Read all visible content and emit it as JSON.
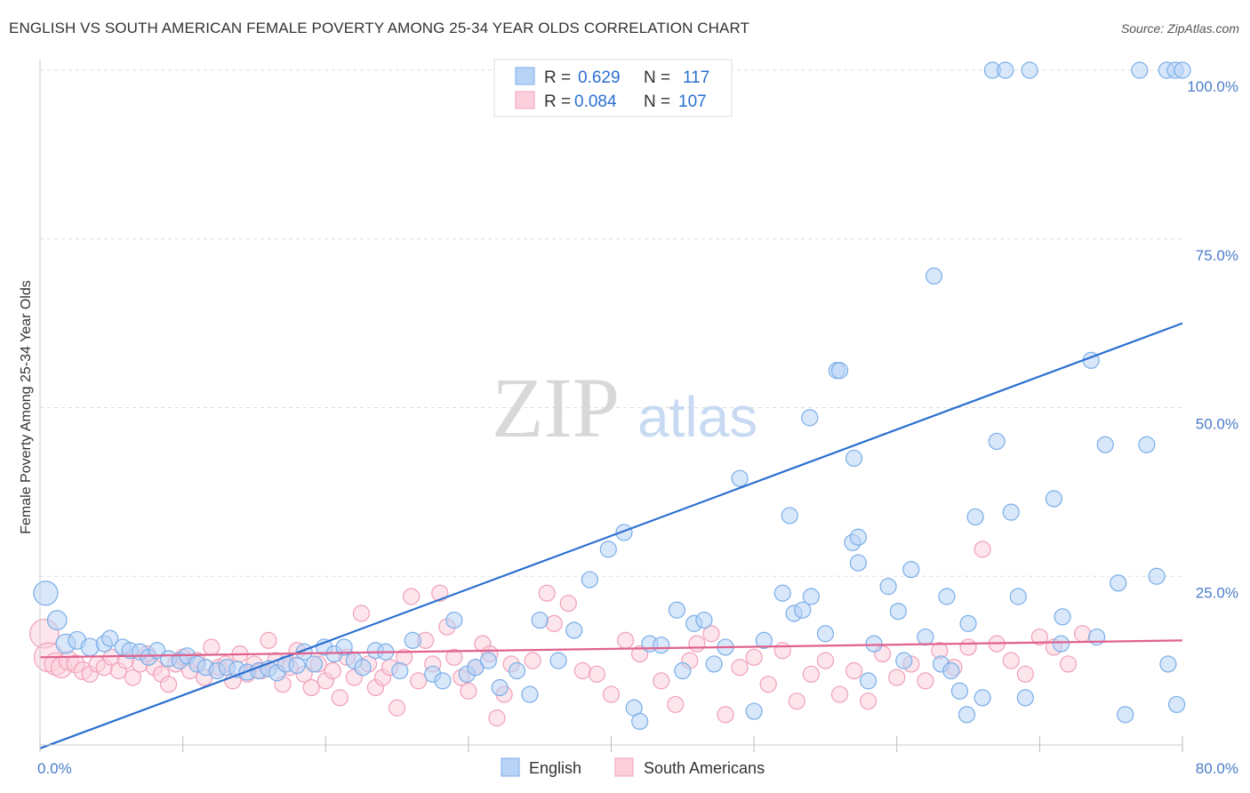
{
  "title": "ENGLISH VS SOUTH AMERICAN FEMALE POVERTY AMONG 25-34 YEAR OLDS CORRELATION CHART",
  "source": "Source: ZipAtlas.com",
  "watermark": {
    "zip": "ZIP",
    "atlas": "atlas"
  },
  "colors": {
    "english": "#7aaee8",
    "english_fill": "#b8d3f5",
    "english_line": "#2b6fd0",
    "south": "#f0a0b8",
    "south_fill": "#fbd0dc",
    "south_line": "#e0628e",
    "tick_text": "#4a7cc9",
    "grid": "#dddddd"
  },
  "legend": {
    "rows": [
      {
        "r_label": "R =",
        "r_value": "0.629",
        "n_label": "N =",
        "n_value": "117"
      },
      {
        "r_label": "R =",
        "r_value": "0.084",
        "n_label": "N =",
        "n_value": "107"
      }
    ]
  },
  "bottom_legend": [
    "English",
    "South Americans"
  ],
  "chart_data": {
    "type": "scatter",
    "title": "ENGLISH VS SOUTH AMERICAN FEMALE POVERTY AMONG 25-34 YEAR OLDS CORRELATION CHART",
    "xlabel": "",
    "ylabel": "Female Poverty Among 25-34 Year Olds",
    "xlim": [
      0,
      80
    ],
    "ylim": [
      0,
      100
    ],
    "x_tick_labels": [
      "0.0%",
      "80.0%"
    ],
    "y_tick_values": [
      25,
      50,
      75,
      100
    ],
    "y_tick_labels": [
      "25.0%",
      "50.0%",
      "75.0%",
      "100.0%"
    ],
    "grid": true,
    "legend_position": "top-center",
    "series": [
      {
        "name": "English",
        "r": 0.629,
        "n": 117,
        "trend": {
          "x": [
            0,
            80
          ],
          "y": [
            -0.5,
            62.5
          ]
        },
        "points": [
          [
            0.4,
            22.5,
            1.5
          ],
          [
            1.2,
            18.5,
            1.2
          ],
          [
            1.8,
            15.0,
            1.2
          ],
          [
            2.6,
            15.5,
            1.1
          ],
          [
            3.5,
            14.5,
            1.1
          ],
          [
            4.5,
            15.0,
            1.0
          ],
          [
            4.9,
            15.8,
            1.0
          ],
          [
            5.8,
            14.5,
            1.0
          ],
          [
            6.3,
            14.0,
            1.0
          ],
          [
            7.0,
            13.8,
            1.0
          ],
          [
            7.6,
            13.0,
            1.0
          ],
          [
            8.2,
            14.0,
            1.0
          ],
          [
            9.0,
            12.8,
            1.0
          ],
          [
            9.8,
            12.5,
            1.0
          ],
          [
            10.3,
            13.2,
            1.0
          ],
          [
            11.0,
            12.0,
            1.0
          ],
          [
            11.6,
            11.5,
            1.0
          ],
          [
            12.4,
            11.0,
            1.0
          ],
          [
            13.1,
            11.5,
            1.0
          ],
          [
            13.8,
            11.2,
            1.0
          ],
          [
            14.5,
            10.8,
            1.0
          ],
          [
            15.3,
            11.0,
            1.0
          ],
          [
            16.0,
            11.3,
            1.0
          ],
          [
            16.6,
            10.7,
            1.0
          ],
          [
            17.2,
            12.0,
            1.0
          ],
          [
            18.0,
            11.8,
            1.0
          ],
          [
            18.5,
            13.8,
            1.0
          ],
          [
            19.2,
            12.0,
            1.0
          ],
          [
            19.9,
            14.5,
            1.0
          ],
          [
            20.6,
            13.5,
            1.0
          ],
          [
            21.3,
            14.5,
            1.0
          ],
          [
            22.0,
            12.5,
            1.0
          ],
          [
            22.6,
            11.5,
            1.0
          ],
          [
            23.5,
            14.0,
            1.0
          ],
          [
            24.2,
            13.8,
            1.0
          ],
          [
            25.2,
            11.0,
            1.0
          ],
          [
            26.1,
            15.5,
            1.0
          ],
          [
            27.5,
            10.5,
            1.0
          ],
          [
            28.2,
            9.5,
            1.0
          ],
          [
            29.0,
            18.5,
            1.0
          ],
          [
            29.9,
            10.5,
            1.0
          ],
          [
            30.5,
            11.5,
            1.0
          ],
          [
            31.4,
            12.5,
            1.0
          ],
          [
            32.2,
            8.5,
            1.0
          ],
          [
            33.4,
            11.0,
            1.0
          ],
          [
            34.3,
            7.5,
            1.0
          ],
          [
            35.0,
            18.5,
            1.0
          ],
          [
            36.3,
            12.5,
            1.0
          ],
          [
            37.4,
            17.0,
            1.0
          ],
          [
            38.5,
            24.5,
            1.0
          ],
          [
            39.8,
            29.0,
            1.0
          ],
          [
            40.9,
            31.5,
            1.0
          ],
          [
            41.6,
            5.5,
            1.0
          ],
          [
            42.0,
            3.5,
            1.0
          ],
          [
            42.7,
            15.0,
            1.0
          ],
          [
            43.5,
            14.8,
            1.0
          ],
          [
            44.6,
            20.0,
            1.0
          ],
          [
            45.8,
            18.0,
            1.0
          ],
          [
            46.5,
            18.5,
            1.0
          ],
          [
            47.2,
            12.0,
            1.0
          ],
          [
            49.0,
            39.5,
            1.0
          ],
          [
            50.7,
            15.5,
            1.0
          ],
          [
            52.0,
            22.5,
            1.0
          ],
          [
            52.8,
            19.5,
            1.0
          ],
          [
            53.4,
            20.0,
            1.0
          ],
          [
            53.9,
            48.5,
            1.0
          ],
          [
            55.8,
            55.5,
            1.0
          ],
          [
            56.9,
            30.0,
            1.0
          ],
          [
            57.3,
            30.8,
            1.0
          ],
          [
            57.3,
            27.0,
            1.0
          ],
          [
            58.4,
            15.0,
            1.0
          ],
          [
            59.4,
            23.5,
            1.0
          ],
          [
            60.1,
            19.8,
            1.0
          ],
          [
            61.0,
            26.0,
            1.0
          ],
          [
            62.6,
            69.5,
            1.0
          ],
          [
            63.1,
            12.0,
            1.0
          ],
          [
            63.8,
            11.0,
            1.0
          ],
          [
            64.4,
            8.0,
            1.0
          ],
          [
            64.9,
            4.5,
            1.0
          ],
          [
            65.5,
            33.8,
            1.0
          ],
          [
            67.0,
            45.0,
            1.0
          ],
          [
            68.0,
            34.5,
            1.0
          ],
          [
            69.0,
            7.0,
            1.0
          ],
          [
            71.0,
            36.5,
            1.0
          ],
          [
            71.5,
            15.0,
            1.0
          ],
          [
            73.6,
            57.0,
            1.0
          ],
          [
            74.6,
            44.5,
            1.0
          ],
          [
            76.0,
            4.5,
            1.0
          ],
          [
            74.0,
            16.0,
            1.0
          ],
          [
            75.5,
            24.0,
            1.0
          ],
          [
            77.5,
            44.5,
            1.0
          ],
          [
            78.2,
            25.0,
            1.0
          ],
          [
            66.7,
            100.0,
            1.0
          ],
          [
            67.6,
            100.0,
            1.0
          ],
          [
            69.3,
            100.0,
            1.0
          ],
          [
            77.0,
            100.0,
            1.0
          ],
          [
            78.9,
            100.0,
            1.0
          ],
          [
            79.5,
            100.0,
            1.0
          ],
          [
            80.0,
            100.0,
            1.0
          ],
          [
            79.0,
            12.0,
            1.0
          ],
          [
            79.6,
            6.0,
            1.0
          ],
          [
            71.6,
            19.0,
            1.0
          ],
          [
            45.0,
            11.0,
            1.0
          ],
          [
            48.0,
            14.5,
            1.0
          ],
          [
            50.0,
            5.0,
            1.0
          ],
          [
            52.5,
            34.0,
            1.0
          ],
          [
            55.0,
            16.5,
            1.0
          ],
          [
            58.0,
            9.5,
            1.0
          ],
          [
            60.5,
            12.5,
            1.0
          ],
          [
            62.0,
            16.0,
            1.0
          ],
          [
            63.5,
            22.0,
            1.0
          ],
          [
            65.0,
            18.0,
            1.0
          ],
          [
            66.0,
            7.0,
            1.0
          ],
          [
            54.0,
            22.0,
            1.0
          ],
          [
            56.0,
            55.5,
            1.0
          ],
          [
            57.0,
            42.5,
            1.0
          ],
          [
            68.5,
            22.0,
            1.0
          ]
        ]
      },
      {
        "name": "South Americans",
        "r": 0.084,
        "n": 107,
        "trend": {
          "x": [
            0,
            80
          ],
          "y": [
            13.0,
            15.5
          ]
        },
        "points": [
          [
            0.3,
            16.5,
            1.8
          ],
          [
            0.6,
            13.0,
            1.8
          ],
          [
            1.1,
            12.0,
            1.4
          ],
          [
            1.5,
            11.5,
            1.3
          ],
          [
            2.0,
            12.5,
            1.2
          ],
          [
            2.5,
            12.0,
            1.1
          ],
          [
            3.0,
            11.0,
            1.1
          ],
          [
            3.5,
            10.5,
            1.0
          ],
          [
            4.0,
            12.0,
            1.0
          ],
          [
            4.5,
            11.5,
            1.0
          ],
          [
            5.0,
            13.0,
            1.0
          ],
          [
            5.5,
            11.0,
            1.0
          ],
          [
            6.0,
            12.5,
            1.0
          ],
          [
            6.5,
            10.0,
            1.0
          ],
          [
            7.0,
            12.0,
            1.0
          ],
          [
            7.5,
            13.5,
            1.0
          ],
          [
            8.0,
            11.5,
            1.0
          ],
          [
            8.5,
            10.5,
            1.0
          ],
          [
            9.0,
            9.0,
            1.0
          ],
          [
            9.5,
            12.0,
            1.0
          ],
          [
            10.0,
            13.0,
            1.0
          ],
          [
            10.5,
            11.0,
            1.0
          ],
          [
            11.0,
            12.5,
            1.0
          ],
          [
            11.5,
            10.0,
            1.0
          ],
          [
            12.0,
            14.5,
            1.0
          ],
          [
            12.5,
            11.5,
            1.0
          ],
          [
            13.0,
            12.0,
            1.0
          ],
          [
            13.5,
            9.5,
            1.0
          ],
          [
            14.0,
            13.5,
            1.0
          ],
          [
            14.5,
            10.5,
            1.0
          ],
          [
            15.0,
            12.0,
            1.0
          ],
          [
            15.5,
            11.0,
            1.0
          ],
          [
            16.0,
            15.5,
            1.0
          ],
          [
            16.5,
            12.5,
            1.0
          ],
          [
            17.0,
            9.0,
            1.0
          ],
          [
            17.5,
            11.5,
            1.0
          ],
          [
            18.0,
            14.0,
            1.0
          ],
          [
            18.5,
            10.5,
            1.0
          ],
          [
            19.0,
            8.5,
            1.0
          ],
          [
            19.5,
            12.0,
            1.0
          ],
          [
            20.0,
            9.5,
            1.0
          ],
          [
            20.5,
            11.0,
            1.0
          ],
          [
            21.0,
            7.0,
            1.0
          ],
          [
            21.5,
            13.0,
            1.0
          ],
          [
            22.0,
            10.0,
            1.0
          ],
          [
            22.5,
            19.5,
            1.0
          ],
          [
            23.0,
            12.0,
            1.0
          ],
          [
            23.5,
            8.5,
            1.0
          ],
          [
            24.0,
            10.0,
            1.0
          ],
          [
            24.5,
            11.5,
            1.0
          ],
          [
            25.0,
            5.5,
            1.0
          ],
          [
            25.5,
            13.0,
            1.0
          ],
          [
            26.0,
            22.0,
            1.0
          ],
          [
            26.5,
            9.5,
            1.0
          ],
          [
            27.0,
            15.5,
            1.0
          ],
          [
            27.5,
            12.0,
            1.0
          ],
          [
            28.0,
            22.5,
            1.0
          ],
          [
            28.5,
            17.5,
            1.0
          ],
          [
            29.0,
            13.0,
            1.0
          ],
          [
            29.5,
            10.0,
            1.0
          ],
          [
            30.0,
            8.0,
            1.0
          ],
          [
            30.5,
            11.5,
            1.0
          ],
          [
            31.0,
            15.0,
            1.0
          ],
          [
            31.5,
            13.5,
            1.0
          ],
          [
            32.0,
            4.0,
            1.0
          ],
          [
            32.5,
            7.5,
            1.0
          ],
          [
            33.0,
            12.0,
            1.0
          ],
          [
            34.5,
            12.5,
            1.0
          ],
          [
            35.5,
            22.5,
            1.0
          ],
          [
            36.0,
            18.0,
            1.0
          ],
          [
            37.0,
            21.0,
            1.0
          ],
          [
            38.0,
            11.0,
            1.0
          ],
          [
            39.0,
            10.5,
            1.0
          ],
          [
            40.0,
            7.5,
            1.0
          ],
          [
            41.0,
            15.5,
            1.0
          ],
          [
            42.0,
            13.5,
            1.0
          ],
          [
            43.5,
            9.5,
            1.0
          ],
          [
            44.5,
            6.0,
            1.0
          ],
          [
            45.5,
            12.5,
            1.0
          ],
          [
            46.0,
            15.0,
            1.0
          ],
          [
            47.0,
            16.5,
            1.0
          ],
          [
            48.0,
            4.5,
            1.0
          ],
          [
            49.0,
            11.5,
            1.0
          ],
          [
            50.0,
            13.0,
            1.0
          ],
          [
            51.0,
            9.0,
            1.0
          ],
          [
            52.0,
            14.0,
            1.0
          ],
          [
            53.0,
            6.5,
            1.0
          ],
          [
            54.0,
            10.5,
            1.0
          ],
          [
            55.0,
            12.5,
            1.0
          ],
          [
            56.0,
            7.5,
            1.0
          ],
          [
            57.0,
            11.0,
            1.0
          ],
          [
            58.0,
            6.5,
            1.0
          ],
          [
            59.0,
            13.5,
            1.0
          ],
          [
            60.0,
            10.0,
            1.0
          ],
          [
            61.0,
            12.0,
            1.0
          ],
          [
            62.0,
            9.5,
            1.0
          ],
          [
            63.0,
            14.0,
            1.0
          ],
          [
            64.0,
            11.5,
            1.0
          ],
          [
            65.0,
            14.5,
            1.0
          ],
          [
            66.0,
            29.0,
            1.0
          ],
          [
            67.0,
            15.0,
            1.0
          ],
          [
            68.0,
            12.5,
            1.0
          ],
          [
            69.0,
            10.5,
            1.0
          ],
          [
            70.0,
            16.0,
            1.0
          ],
          [
            71.0,
            14.5,
            1.0
          ],
          [
            72.0,
            12.0,
            1.0
          ],
          [
            73.0,
            16.5,
            1.0
          ]
        ]
      }
    ]
  }
}
